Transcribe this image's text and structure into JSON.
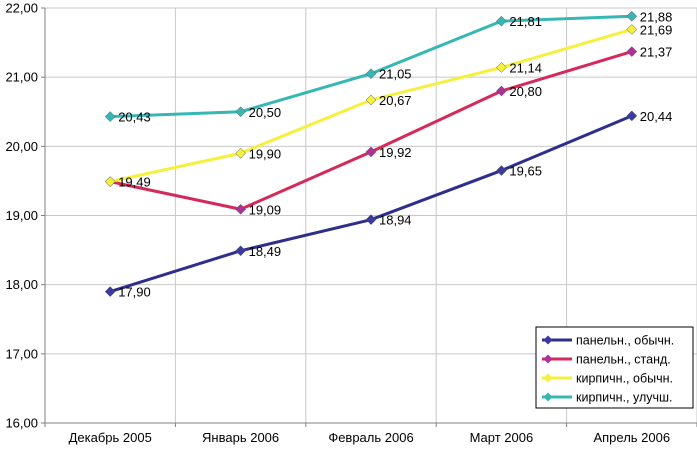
{
  "chart_data": {
    "type": "line",
    "categories": [
      "Декабрь 2005",
      "Январь 2006",
      "Февраль 2006",
      "Март 2006",
      "Апрель 2006"
    ],
    "ylim": [
      16,
      22
    ],
    "yticks": [
      "16,00",
      "17,00",
      "18,00",
      "19,00",
      "20,00",
      "21,00",
      "22,00"
    ],
    "grid": true,
    "legend_position": "bottom-right",
    "series": [
      {
        "name": "панельн., обычн.",
        "color": "#2e2e8c",
        "values": [
          17.9,
          18.49,
          18.94,
          19.65,
          20.44
        ],
        "labels": [
          "17,90",
          "18,49",
          "18,94",
          "19,65",
          "20,44"
        ]
      },
      {
        "name": "панельн., станд.",
        "color": "#d42a5a",
        "values": [
          19.49,
          19.09,
          19.92,
          20.8,
          21.37
        ],
        "labels": [
          "",
          "19,09",
          "19,92",
          "20,80",
          "21,37"
        ]
      },
      {
        "name": "кирпичн., обычн.",
        "color": "#f5f03c",
        "values": [
          19.49,
          19.9,
          20.67,
          21.14,
          21.69
        ],
        "labels": [
          "19,49",
          "19,90",
          "20,67",
          "21,14",
          "21,69"
        ]
      },
      {
        "name": "кирпичн., улучш.",
        "color": "#35b8b4",
        "values": [
          20.43,
          20.5,
          21.05,
          21.81,
          21.88
        ],
        "labels": [
          "20,43",
          "20,50",
          "21,05",
          "21,81",
          "21,88"
        ]
      }
    ],
    "marker_colors": [
      "#3a3aa0",
      "#b0309a",
      "#f5f03c",
      "#35b8b4"
    ]
  }
}
